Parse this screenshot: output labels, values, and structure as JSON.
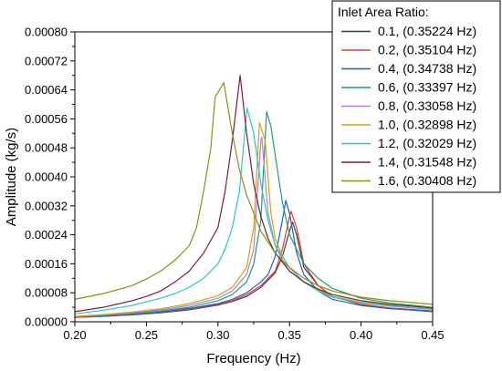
{
  "chart_data": {
    "type": "line",
    "title": "",
    "xlabel": "Frequency (Hz)",
    "ylabel": "Amplitude (kg/s)",
    "xlim": [
      0.2,
      0.45
    ],
    "ylim": [
      0.0,
      0.0008
    ],
    "x_ticks": [
      "0.20",
      "0.25",
      "0.30",
      "0.35",
      "0.40",
      "0.45"
    ],
    "y_ticks": [
      "0.00000",
      "0.00008",
      "0.00016",
      "0.00024",
      "0.00032",
      "0.00040",
      "0.00048",
      "0.00056",
      "0.00064",
      "0.00072",
      "0.00080"
    ],
    "grid": false,
    "legend": {
      "title": "Inlet Area Ratio:",
      "placement": "top-right"
    },
    "series": [
      {
        "name": "0.1, (0.35224 Hz)",
        "color": "#404040",
        "points": [
          [
            0.2,
            1.2e-05
          ],
          [
            0.22,
            1.5e-05
          ],
          [
            0.24,
            1.9e-05
          ],
          [
            0.26,
            2.5e-05
          ],
          [
            0.28,
            3.3e-05
          ],
          [
            0.3,
            4.6e-05
          ],
          [
            0.31,
            5.6e-05
          ],
          [
            0.32,
            7e-05
          ],
          [
            0.33,
            9.5e-05
          ],
          [
            0.34,
            0.000135
          ],
          [
            0.345,
            0.00018
          ],
          [
            0.35,
            0.00025
          ],
          [
            0.3522,
            0.000275
          ],
          [
            0.355,
            0.00024
          ],
          [
            0.36,
            0.00015
          ],
          [
            0.37,
            0.0001
          ],
          [
            0.38,
            7e-05
          ],
          [
            0.4,
            4.8e-05
          ],
          [
            0.42,
            3.7e-05
          ],
          [
            0.45,
            2.8e-05
          ]
        ]
      },
      {
        "name": "0.2, (0.35104 Hz)",
        "color": "#e63b2e",
        "points": [
          [
            0.2,
            1.2e-05
          ],
          [
            0.22,
            1.5e-05
          ],
          [
            0.24,
            2e-05
          ],
          [
            0.26,
            2.6e-05
          ],
          [
            0.28,
            3.5e-05
          ],
          [
            0.3,
            4.8e-05
          ],
          [
            0.31,
            5.8e-05
          ],
          [
            0.32,
            7.5e-05
          ],
          [
            0.33,
            0.0001
          ],
          [
            0.34,
            0.00014
          ],
          [
            0.345,
            0.0002
          ],
          [
            0.35,
            0.00029
          ],
          [
            0.351,
            0.000305
          ],
          [
            0.355,
            0.00026
          ],
          [
            0.36,
            0.00016
          ],
          [
            0.37,
            0.0001
          ],
          [
            0.38,
            7e-05
          ],
          [
            0.4,
            4.8e-05
          ],
          [
            0.42,
            3.8e-05
          ],
          [
            0.45,
            3e-05
          ]
        ]
      },
      {
        "name": "0.4, (0.34738 Hz)",
        "color": "#1f5fc8",
        "points": [
          [
            0.2,
            1.3e-05
          ],
          [
            0.22,
            1.6e-05
          ],
          [
            0.24,
            2e-05
          ],
          [
            0.26,
            2.7e-05
          ],
          [
            0.28,
            3.7e-05
          ],
          [
            0.3,
            5e-05
          ],
          [
            0.31,
            6.2e-05
          ],
          [
            0.32,
            8e-05
          ],
          [
            0.33,
            0.00011
          ],
          [
            0.335,
            0.00013
          ],
          [
            0.34,
            0.00018
          ],
          [
            0.345,
            0.00028
          ],
          [
            0.3474,
            0.000335
          ],
          [
            0.35,
            0.0003
          ],
          [
            0.355,
            0.00019
          ],
          [
            0.36,
            0.00013
          ],
          [
            0.37,
            8.5e-05
          ],
          [
            0.38,
            6.2e-05
          ],
          [
            0.4,
            4.5e-05
          ],
          [
            0.42,
            3.6e-05
          ],
          [
            0.45,
            2.9e-05
          ]
        ]
      },
      {
        "name": "0.6, (0.33397 Hz)",
        "color": "#1e9e6e",
        "points": [
          [
            0.2,
            1.4e-05
          ],
          [
            0.22,
            1.8e-05
          ],
          [
            0.24,
            2.3e-05
          ],
          [
            0.26,
            3e-05
          ],
          [
            0.28,
            4e-05
          ],
          [
            0.3,
            5.8e-05
          ],
          [
            0.31,
            7.5e-05
          ],
          [
            0.32,
            0.00011
          ],
          [
            0.325,
            0.00016
          ],
          [
            0.33,
            0.00028
          ],
          [
            0.334,
            0.00058
          ],
          [
            0.337,
            0.00054
          ],
          [
            0.34,
            0.00046
          ],
          [
            0.345,
            0.00033
          ],
          [
            0.35,
            0.00024
          ],
          [
            0.36,
            0.00016
          ],
          [
            0.37,
            0.00012
          ],
          [
            0.38,
            9.2e-05
          ],
          [
            0.4,
            6.5e-05
          ],
          [
            0.42,
            5.2e-05
          ],
          [
            0.45,
            4e-05
          ]
        ]
      },
      {
        "name": "0.8, (0.33058 Hz)",
        "color": "#b87fd8",
        "points": [
          [
            0.2,
            1.4e-05
          ],
          [
            0.22,
            1.9e-05
          ],
          [
            0.24,
            2.5e-05
          ],
          [
            0.26,
            3.3e-05
          ],
          [
            0.28,
            4.5e-05
          ],
          [
            0.3,
            6.5e-05
          ],
          [
            0.31,
            8.5e-05
          ],
          [
            0.32,
            0.00013
          ],
          [
            0.325,
            0.0002
          ],
          [
            0.33,
            0.0005
          ],
          [
            0.3306,
            0.00051
          ],
          [
            0.335,
            0.0003
          ],
          [
            0.34,
            0.00021
          ],
          [
            0.345,
            0.00017
          ],
          [
            0.35,
            0.00014
          ],
          [
            0.36,
            0.00011
          ],
          [
            0.37,
            8.8e-05
          ],
          [
            0.38,
            7e-05
          ],
          [
            0.4,
            5.3e-05
          ],
          [
            0.42,
            4.3e-05
          ],
          [
            0.45,
            3.4e-05
          ]
        ]
      },
      {
        "name": "1.0, (0.32898 Hz)",
        "color": "#d4a017",
        "points": [
          [
            0.2,
            1.5e-05
          ],
          [
            0.22,
            2e-05
          ],
          [
            0.24,
            2.7e-05
          ],
          [
            0.26,
            3.6e-05
          ],
          [
            0.28,
            5e-05
          ],
          [
            0.3,
            7.2e-05
          ],
          [
            0.31,
            9.5e-05
          ],
          [
            0.32,
            0.00015
          ],
          [
            0.325,
            0.00026
          ],
          [
            0.329,
            0.00055
          ],
          [
            0.333,
            0.0005
          ],
          [
            0.337,
            0.0003
          ],
          [
            0.34,
            0.00023
          ],
          [
            0.345,
            0.00018
          ],
          [
            0.35,
            0.00015
          ],
          [
            0.36,
            0.00011
          ],
          [
            0.37,
            8.8e-05
          ],
          [
            0.38,
            7e-05
          ],
          [
            0.4,
            5.4e-05
          ],
          [
            0.42,
            4.6e-05
          ],
          [
            0.45,
            4e-05
          ]
        ]
      },
      {
        "name": "1.2, (0.32029 Hz)",
        "color": "#27c9c9",
        "points": [
          [
            0.2,
            2.2e-05
          ],
          [
            0.22,
            3.2e-05
          ],
          [
            0.24,
            4.5e-05
          ],
          [
            0.26,
            6.5e-05
          ],
          [
            0.27,
            7.8e-05
          ],
          [
            0.28,
            9.5e-05
          ],
          [
            0.29,
            0.00012
          ],
          [
            0.3,
            0.00016
          ],
          [
            0.305,
            0.0002
          ],
          [
            0.31,
            0.00026
          ],
          [
            0.315,
            0.00036
          ],
          [
            0.3203,
            0.00059
          ],
          [
            0.325,
            0.00052
          ],
          [
            0.33,
            0.00038
          ],
          [
            0.335,
            0.00028
          ],
          [
            0.34,
            0.00021
          ],
          [
            0.35,
            0.00015
          ],
          [
            0.36,
            0.00011
          ],
          [
            0.37,
            8.5e-05
          ],
          [
            0.38,
            6.8e-05
          ],
          [
            0.4,
            5.2e-05
          ],
          [
            0.42,
            4.3e-05
          ],
          [
            0.45,
            3.5e-05
          ]
        ]
      },
      {
        "name": "1.4, (0.31548 Hz)",
        "color": "#7a1f3a",
        "points": [
          [
            0.2,
            2.8e-05
          ],
          [
            0.22,
            4e-05
          ],
          [
            0.24,
            5.8e-05
          ],
          [
            0.25,
            7e-05
          ],
          [
            0.26,
            8.5e-05
          ],
          [
            0.27,
            0.00011
          ],
          [
            0.28,
            0.00014
          ],
          [
            0.29,
            0.00019
          ],
          [
            0.3,
            0.00026
          ],
          [
            0.305,
            0.00036
          ],
          [
            0.31,
            0.0005
          ],
          [
            0.3155,
            0.00068
          ],
          [
            0.32,
            0.00052
          ],
          [
            0.325,
            0.00038
          ],
          [
            0.33,
            0.00029
          ],
          [
            0.335,
            0.00023
          ],
          [
            0.34,
            0.00019
          ],
          [
            0.35,
            0.00014
          ],
          [
            0.36,
            0.00011
          ],
          [
            0.37,
            9e-05
          ],
          [
            0.38,
            7.5e-05
          ],
          [
            0.4,
            5.8e-05
          ],
          [
            0.42,
            4.8e-05
          ],
          [
            0.45,
            3.8e-05
          ]
        ]
      },
      {
        "name": "1.6, (0.30408 Hz)",
        "color": "#8e8e14",
        "points": [
          [
            0.2,
            6.2e-05
          ],
          [
            0.22,
            7.8e-05
          ],
          [
            0.24,
            0.0001
          ],
          [
            0.25,
            0.000118
          ],
          [
            0.26,
            0.00014
          ],
          [
            0.27,
            0.00017
          ],
          [
            0.28,
            0.00021
          ],
          [
            0.285,
            0.00026
          ],
          [
            0.29,
            0.00036
          ],
          [
            0.295,
            0.00048
          ],
          [
            0.298,
            0.00062
          ],
          [
            0.3041,
            0.00066
          ],
          [
            0.31,
            0.00052
          ],
          [
            0.315,
            0.00042
          ],
          [
            0.32,
            0.00035
          ],
          [
            0.325,
            0.0003
          ],
          [
            0.33,
            0.00025
          ],
          [
            0.34,
            0.00019
          ],
          [
            0.35,
            0.00015
          ],
          [
            0.36,
            0.00012
          ],
          [
            0.37,
            0.0001
          ],
          [
            0.38,
            8.5e-05
          ],
          [
            0.4,
            6.8e-05
          ],
          [
            0.42,
            5.8e-05
          ],
          [
            0.45,
            4.8e-05
          ]
        ]
      }
    ]
  }
}
